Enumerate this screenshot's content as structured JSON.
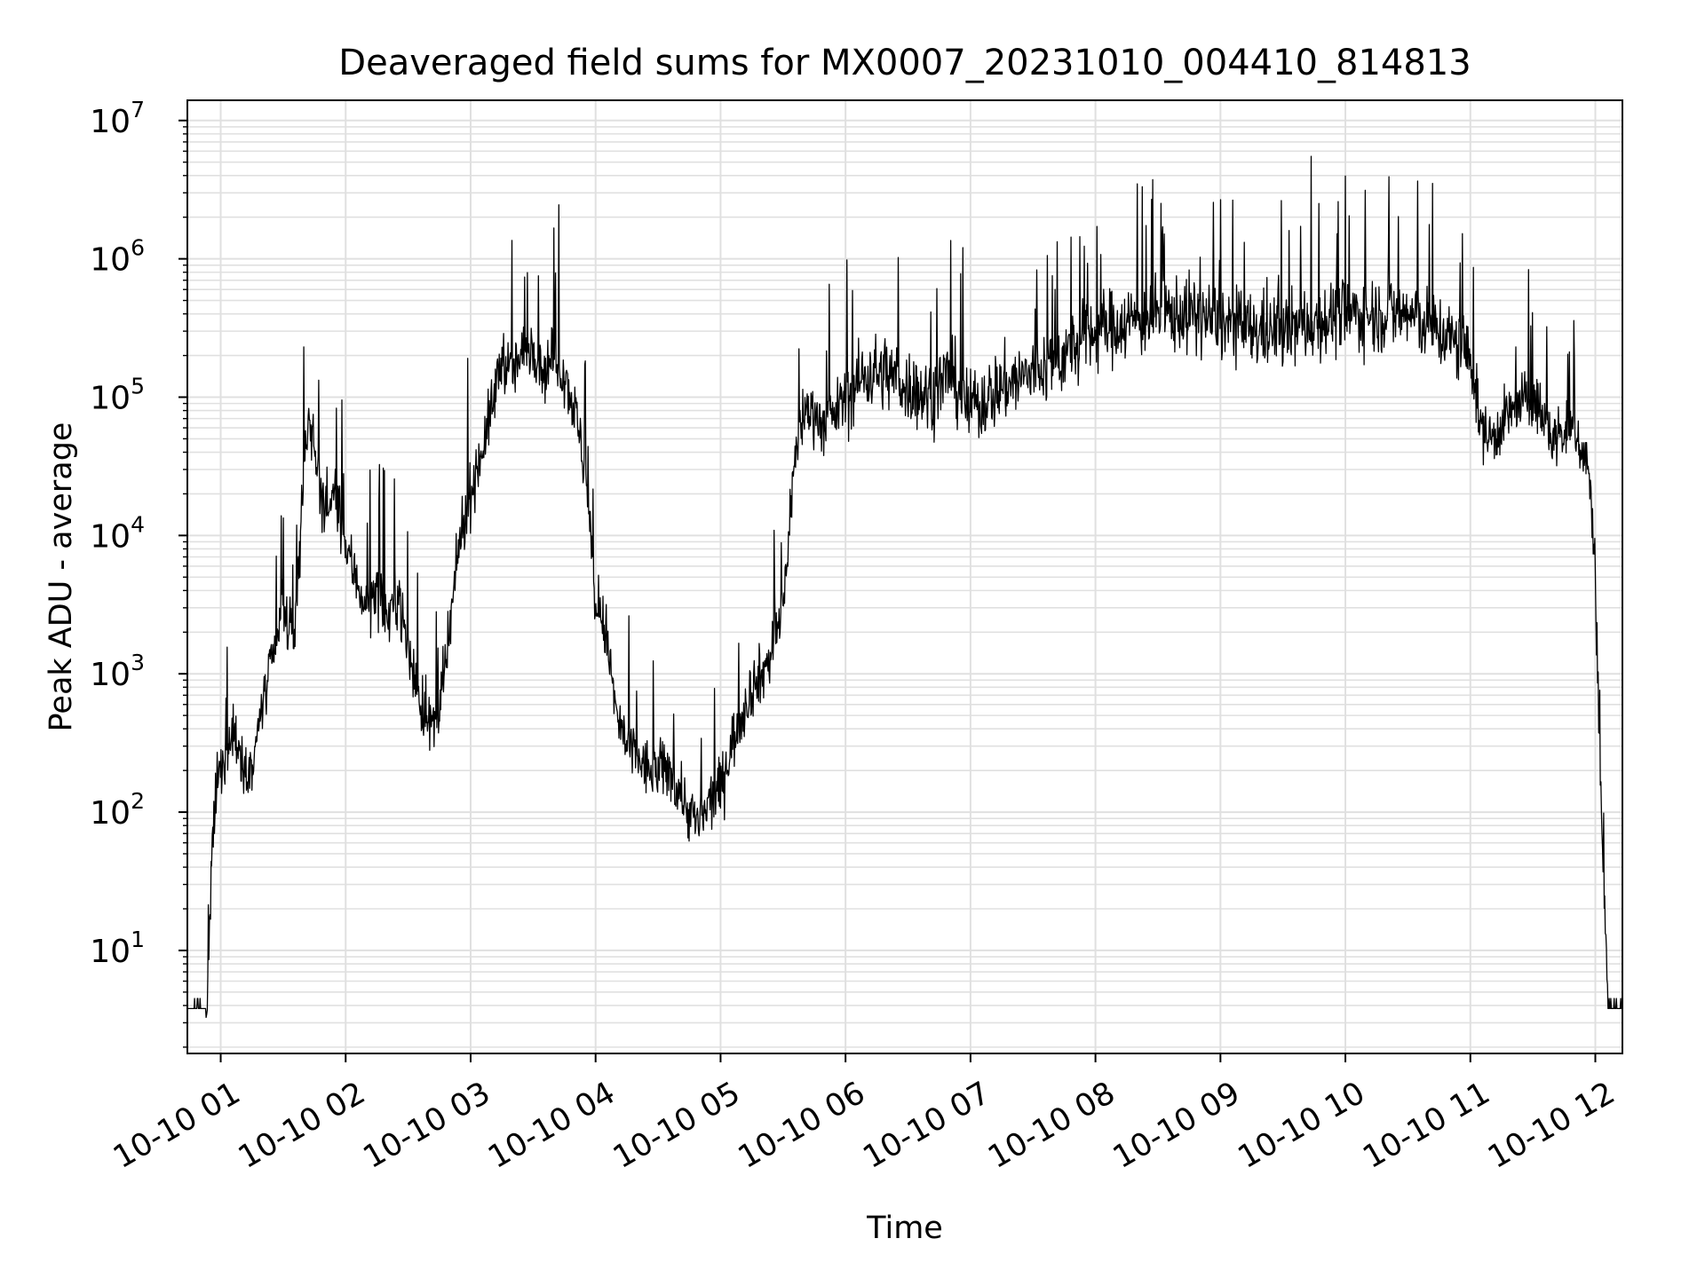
{
  "chart_data": {
    "type": "line",
    "title": "Deaveraged field sums for MX0007_20231010_004410_814813",
    "xlabel": "Time",
    "ylabel": "Peak ADU - average",
    "yscale": "log",
    "ylim": [
      1.8,
      14000000
    ],
    "xlim": [
      "2023-10-10 00:44",
      "2023-10-10 12:13"
    ],
    "grid": true,
    "legend": "none",
    "line_color": "#000000",
    "x_tick_labels": [
      "10-10 01",
      "10-10 02",
      "10-10 03",
      "10-10 04",
      "10-10 05",
      "10-10 06",
      "10-10 07",
      "10-10 08",
      "10-10 09",
      "10-10 10",
      "10-10 11",
      "10-10 12"
    ],
    "y_tick_labels": [
      {
        "base": "10",
        "exp": "1"
      },
      {
        "base": "10",
        "exp": "2"
      },
      {
        "base": "10",
        "exp": "3"
      },
      {
        "base": "10",
        "exp": "4"
      },
      {
        "base": "10",
        "exp": "5"
      },
      {
        "base": "10",
        "exp": "6"
      },
      {
        "base": "10",
        "exp": "7"
      }
    ],
    "series": [
      {
        "x": [
          "2023-10-10 00:44",
          "2023-10-10 00:53",
          "2023-10-10 00:54",
          "2023-10-10 00:56",
          "2023-10-10 00:58",
          "2023-10-10 01:02",
          "2023-10-10 01:06",
          "2023-10-10 01:10",
          "2023-10-10 01:15",
          "2023-10-10 01:20",
          "2023-10-10 01:25",
          "2023-10-10 01:30",
          "2023-10-10 01:35",
          "2023-10-10 01:40",
          "2023-10-10 01:42",
          "2023-10-10 01:45",
          "2023-10-10 01:50",
          "2023-10-10 01:55",
          "2023-10-10 02:00",
          "2023-10-10 02:05",
          "2023-10-10 02:10",
          "2023-10-10 02:15",
          "2023-10-10 02:20",
          "2023-10-10 02:25",
          "2023-10-10 02:30",
          "2023-10-10 02:35",
          "2023-10-10 02:40",
          "2023-10-10 02:45",
          "2023-10-10 02:50",
          "2023-10-10 02:55",
          "2023-10-10 03:00",
          "2023-10-10 03:05",
          "2023-10-10 03:10",
          "2023-10-10 03:15",
          "2023-10-10 03:20",
          "2023-10-10 03:25",
          "2023-10-10 03:30",
          "2023-10-10 03:35",
          "2023-10-10 03:40",
          "2023-10-10 03:45",
          "2023-10-10 03:50",
          "2023-10-10 03:55",
          "2023-10-10 04:00",
          "2023-10-10 04:05",
          "2023-10-10 04:10",
          "2023-10-10 04:15",
          "2023-10-10 04:20",
          "2023-10-10 04:25",
          "2023-10-10 04:30",
          "2023-10-10 04:35",
          "2023-10-10 04:40",
          "2023-10-10 04:45",
          "2023-10-10 04:50",
          "2023-10-10 04:55",
          "2023-10-10 05:00",
          "2023-10-10 05:05",
          "2023-10-10 05:10",
          "2023-10-10 05:15",
          "2023-10-10 05:20",
          "2023-10-10 05:25",
          "2023-10-10 05:30",
          "2023-10-10 05:35",
          "2023-10-10 05:40",
          "2023-10-10 05:45",
          "2023-10-10 05:50",
          "2023-10-10 06:00",
          "2023-10-10 06:10",
          "2023-10-10 06:20",
          "2023-10-10 06:30",
          "2023-10-10 06:40",
          "2023-10-10 06:50",
          "2023-10-10 07:00",
          "2023-10-10 07:15",
          "2023-10-10 07:30",
          "2023-10-10 07:45",
          "2023-10-10 08:00",
          "2023-10-10 08:15",
          "2023-10-10 08:30",
          "2023-10-10 08:45",
          "2023-10-10 09:00",
          "2023-10-10 09:15",
          "2023-10-10 09:30",
          "2023-10-10 09:45",
          "2023-10-10 10:00",
          "2023-10-10 10:15",
          "2023-10-10 10:30",
          "2023-10-10 10:45",
          "2023-10-10 11:00",
          "2023-10-10 11:05",
          "2023-10-10 11:10",
          "2023-10-10 11:20",
          "2023-10-10 11:30",
          "2023-10-10 11:40",
          "2023-10-10 11:50",
          "2023-10-10 11:57",
          "2023-10-10 12:00",
          "2023-10-10 12:03",
          "2023-10-10 12:06",
          "2023-10-10 12:08",
          "2023-10-10 12:13"
        ],
        "y": [
          4,
          4,
          5,
          60,
          150,
          250,
          400,
          250,
          200,
          600,
          1200,
          3000,
          1500,
          30000,
          80000,
          40000,
          15000,
          20000,
          8000,
          5000,
          3000,
          4000,
          2500,
          4000,
          1500,
          700,
          400,
          500,
          2000,
          10000,
          20000,
          40000,
          80000,
          200000,
          150000,
          200000,
          250000,
          150000,
          200000,
          150000,
          80000,
          30000,
          3000,
          2000,
          500,
          300,
          250,
          200,
          200,
          200,
          150,
          100,
          80,
          120,
          150,
          300,
          500,
          800,
          1000,
          1500,
          3000,
          30000,
          80000,
          80000,
          60000,
          100000,
          150000,
          150000,
          120000,
          100000,
          150000,
          80000,
          120000,
          150000,
          200000,
          300000,
          350000,
          400000,
          400000,
          350000,
          300000,
          300000,
          350000,
          400000,
          400000,
          400000,
          300000,
          200000,
          60000,
          50000,
          80000,
          100000,
          50000,
          60000,
          30000,
          5000,
          80,
          4,
          4,
          4
        ]
      }
    ]
  }
}
